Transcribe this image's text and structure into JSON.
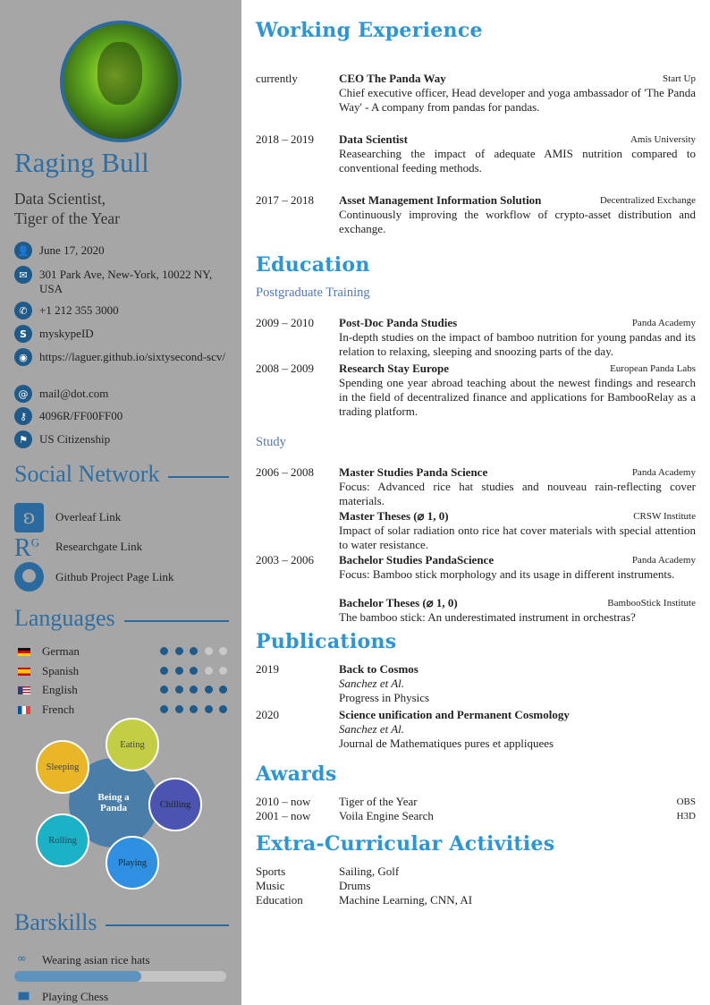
{
  "sidebar": {
    "name": "Raging Bull",
    "subtitle": [
      "Data Scientist,",
      "Tiger of the Year"
    ],
    "contacts": [
      {
        "icon": "user-icon",
        "text": "June 17, 2020"
      },
      {
        "icon": "envelope-icon",
        "text": "301 Park Ave, New-York, 10022 NY, USA"
      },
      {
        "icon": "phone-icon",
        "text": "+1 212 355 3000"
      },
      {
        "icon": "skype-icon",
        "text": "myskypeID"
      },
      {
        "icon": "globe-icon",
        "text": "https://laguer.github.io/sixtysecond-scv/"
      },
      {
        "icon": "at-icon",
        "text": "mail@dot.com"
      },
      {
        "icon": "key-icon",
        "text": "4096R/FF00FF00"
      },
      {
        "icon": "flag-icon",
        "text": "US Citizenship"
      }
    ],
    "social_title": "Social Network",
    "social": [
      {
        "icon": "overleaf-icon",
        "text": "Overleaf Link"
      },
      {
        "icon": "researchgate-icon",
        "text": "Researchgate Link"
      },
      {
        "icon": "github-icon",
        "text": "Github Project Page Link"
      }
    ],
    "languages_title": "Languages",
    "languages": [
      {
        "name": "German",
        "level": 3,
        "max": 5
      },
      {
        "name": "Spanish",
        "level": 3,
        "max": 5
      },
      {
        "name": "English",
        "level": 5,
        "max": 5
      },
      {
        "name": "French",
        "level": 5,
        "max": 5
      }
    ],
    "bubbles": {
      "center": "Being a Panda",
      "items": [
        "Eating",
        "Sleeping",
        "Chilling",
        "Rolling",
        "Playing"
      ]
    },
    "barskills_title": "Barskills",
    "barskills": [
      {
        "icon": "infinity-icon",
        "text": "Wearing asian rice hats",
        "level": 0.6
      },
      {
        "icon": "image-icon",
        "text": "Playing Chess"
      }
    ],
    "colors": {
      "sidebar_bg": "#a6a6a6",
      "accent": "#2d6ea3",
      "heading": "#2a95d8"
    }
  },
  "main": {
    "experience_title": "Working Experience",
    "experience": [
      {
        "date": "currently",
        "title": "CEO The Panda Way",
        "org": "Start Up",
        "desc": "Chief executive officer, Head developer and yoga ambassador of 'The Panda Way' - A company from pandas for pandas."
      },
      {
        "date": "2018 – 2019",
        "title": "Data Scientist",
        "org": "Amis University",
        "desc": "Reasearching the impact of adequate AMIS nutrition compared to conventional feeding methods."
      },
      {
        "date": "2017 – 2018",
        "title": "Asset Management Information Solution",
        "org": "Decentralized Exchange",
        "desc": "Continuously improving the workflow of crypto-asset distribution and exchange."
      }
    ],
    "education_title": "Education",
    "postgrad_title": "Postgraduate Training",
    "postgrad": [
      {
        "date": "2009 – 2010",
        "title": "Post-Doc Panda Studies",
        "org": "Panda Academy",
        "desc": "In-depth studies on the impact of bamboo nutrition for young pandas and its relation to relaxing, sleeping and snoozing parts of the day."
      },
      {
        "date": "2008 – 2009",
        "title": "Research Stay Europe",
        "org": "European Panda Labs",
        "desc": "Spending one year abroad teaching about the newest findings and research in the field of decentralized finance and applications for BambooRelay as a trading platform."
      }
    ],
    "study_title": "Study",
    "study": [
      {
        "date": "2006 – 2008",
        "title": "Master Studies Panda Science",
        "org": "Panda Academy",
        "desc": "Focus: Advanced rice hat studies and nouveau rain-reflecting cover materials."
      },
      {
        "date": "",
        "title": "Master Theses (⌀ 1, 0)",
        "org": "CRSW Institute",
        "desc": "Impact of solar radiation onto rice hat cover materials with special attention to water resistance."
      },
      {
        "date": "2003 – 2006",
        "title": "Bachelor Studies PandaScience",
        "org": "Panda Academy",
        "desc": "Focus: Bamboo stick morphology and its usage in different instruments."
      },
      {
        "date": "",
        "title": "Bachelor Theses (⌀ 1, 0)",
        "org": "BambooStick Institute",
        "desc": "The bamboo stick: An underestimated instrument in orchestras?"
      }
    ],
    "publications_title": "Publications",
    "publications": [
      {
        "date": "2019",
        "title": "Back to Cosmos",
        "authors": "Sanchez et Al.",
        "journal": "Progress in Physics"
      },
      {
        "date": "2020",
        "title": "Science unification and Permanent Cosmology",
        "authors": "Sanchez et Al.",
        "journal": "Journal de Mathematiques pures et appliquees"
      }
    ],
    "awards_title": "Awards",
    "awards": [
      {
        "date": "2010 – now",
        "title": "Tiger of the Year",
        "org": "OBS"
      },
      {
        "date": "2001 – now",
        "title": "Voila Engine Search",
        "org": "H3D"
      }
    ],
    "extra_title": "Extra-Curricular Activities",
    "extra": [
      {
        "label": "Sports",
        "value": "Sailing, Golf"
      },
      {
        "label": "Music",
        "value": "Drums"
      },
      {
        "label": "Education",
        "value": "Machine Learning, CNN, AI"
      }
    ]
  }
}
